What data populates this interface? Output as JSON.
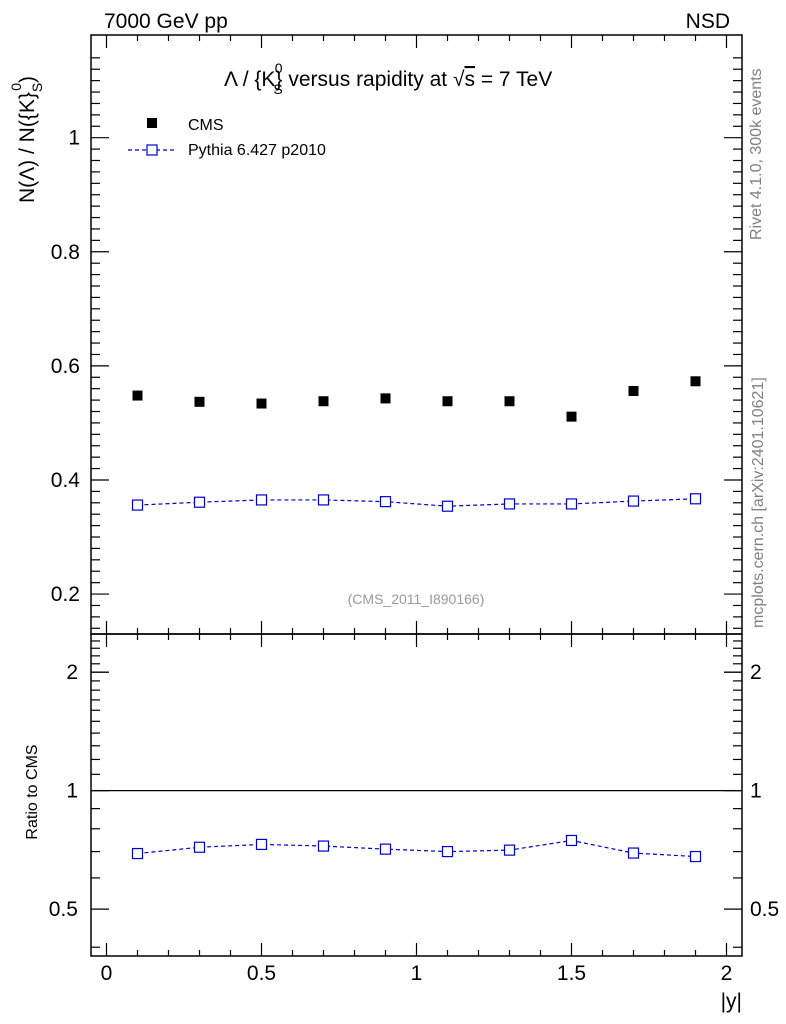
{
  "header": {
    "left": "7000 GeV pp",
    "right": "NSD"
  },
  "title": {
    "pre": "Λ / {K}",
    "sup": "0",
    "sub": "S",
    "post": " versus rapidity at ",
    "sqrt": "√",
    "s": "s",
    "tail": " = 7 TeV"
  },
  "ylabel_top": {
    "pre": "N(Λ)  /  N({K}",
    "sup": "0",
    "sub": "S",
    "post": ")"
  },
  "ylabel_bottom": "Ratio to CMS",
  "xlabel": "|y|",
  "watermark": "(CMS_2011_I890166)",
  "side_text": {
    "rivet": "Rivet 4.1.0,  300k events",
    "mcplots": "mcplots.cern.ch [arXiv:2401.10621]"
  },
  "legend": {
    "data": "CMS",
    "mc": "Pythia 6.427 p2010"
  },
  "colors": {
    "data": "#000000",
    "mc": "#0000cc",
    "axis": "#000000",
    "side_text": "#808080"
  },
  "chart_data": [
    {
      "type": "scatter",
      "panel": "main",
      "x": [
        0.1,
        0.3,
        0.5,
        0.7,
        0.9,
        1.1,
        1.3,
        1.5,
        1.7,
        1.9
      ],
      "series": [
        {
          "name": "CMS",
          "marker": "filled-square",
          "values": [
            0.548,
            0.537,
            0.534,
            0.538,
            0.543,
            0.538,
            0.538,
            0.511,
            0.556,
            0.573
          ]
        },
        {
          "name": "Pythia 6.427 p2010",
          "marker": "open-square",
          "line": "dashed",
          "values": [
            0.356,
            0.361,
            0.365,
            0.365,
            0.362,
            0.354,
            0.358,
            0.358,
            0.363,
            0.367
          ]
        }
      ],
      "xlim": [
        -0.05,
        2.05
      ],
      "ylim": [
        0.13,
        1.18
      ],
      "yticks": [
        0.2,
        0.4,
        0.6,
        0.8,
        1
      ],
      "ytick_labels": [
        "0.2",
        "0.4",
        "0.6",
        "0.8",
        "1"
      ]
    },
    {
      "type": "line",
      "panel": "ratio",
      "x": [
        0.1,
        0.3,
        0.5,
        0.7,
        0.9,
        1.1,
        1.3,
        1.5,
        1.7,
        1.9
      ],
      "series": [
        {
          "name": "Pythia 6.427 p2010",
          "marker": "open-square",
          "line": "dashed",
          "values": [
            0.692,
            0.718,
            0.73,
            0.723,
            0.71,
            0.7,
            0.706,
            0.747,
            0.694,
            0.68
          ]
        }
      ],
      "reference": 1,
      "xlim": [
        -0.05,
        2.05
      ],
      "ylim": [
        0.38,
        2.5
      ],
      "scale": "log",
      "yticks": [
        0.5,
        1,
        2
      ],
      "ytick_labels": [
        "0.5",
        "1",
        "2"
      ],
      "xticks": [
        0,
        0.5,
        1,
        1.5,
        2
      ],
      "xtick_labels": [
        "0",
        "0.5",
        "1",
        "1.5",
        "2"
      ]
    }
  ]
}
